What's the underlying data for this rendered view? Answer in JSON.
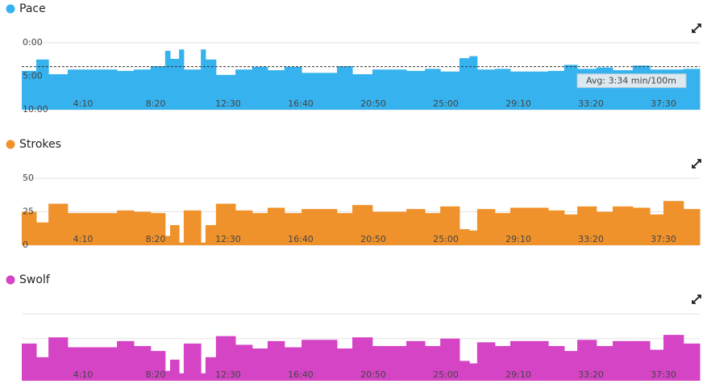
{
  "chart_data": [
    {
      "type": "histogram",
      "title": "Pace",
      "color": "#36b3ee",
      "inverted": true,
      "grid": true,
      "bins": [
        39,
        89,
        131,
        197,
        367,
        425,
        483,
        533,
        550,
        581,
        597,
        656,
        672,
        708,
        775,
        833,
        886,
        944,
        1003,
        1125,
        1178,
        1247,
        1364,
        1428,
        1481,
        1547,
        1581,
        1608,
        1669,
        1722,
        1853,
        1908,
        1953,
        2019,
        2075,
        2144,
        2203,
        2250,
        2319,
        2375
      ],
      "values": [
        4.2,
        2.5,
        4.7,
        4.0,
        4.2,
        4.0,
        3.5,
        1.2,
        2.4,
        1.0,
        4.0,
        1.0,
        2.5,
        4.8,
        4.0,
        3.6,
        4.1,
        3.6,
        4.5,
        3.5,
        4.7,
        4.0,
        4.2,
        3.9,
        4.3,
        2.3,
        2.0,
        4.0,
        3.9,
        4.3,
        4.2,
        3.3,
        3.9,
        3.7,
        4.1,
        3.4,
        4.0,
        4.0,
        3.9
      ],
      "xlim": [
        39,
        2375
      ],
      "xticks": [
        {
          "value": 250,
          "label": "4:10"
        },
        {
          "value": 500,
          "label": "8:20"
        },
        {
          "value": 750,
          "label": "12:30"
        },
        {
          "value": 1000,
          "label": "16:40"
        },
        {
          "value": 1250,
          "label": "20:50"
        },
        {
          "value": 1500,
          "label": "25:00"
        },
        {
          "value": 1750,
          "label": "29:10"
        },
        {
          "value": 2000,
          "label": "33:20"
        },
        {
          "value": 2250,
          "label": "37:30"
        }
      ],
      "ylim": [
        0,
        10
      ],
      "yticks": [
        {
          "value": 0,
          "label": "0:00"
        },
        {
          "value": 5,
          "label": "5:00"
        },
        {
          "value": 10,
          "label": "10:00"
        }
      ],
      "annotation": {
        "text": "Avg: 3:34 min/100m",
        "value": 3.567
      }
    },
    {
      "type": "histogram",
      "title": "Strokes",
      "color": "#f0922b",
      "grid": true,
      "bins": [
        39,
        89,
        131,
        197,
        367,
        425,
        483,
        533,
        550,
        581,
        597,
        656,
        672,
        708,
        775,
        833,
        886,
        944,
        1003,
        1125,
        1178,
        1247,
        1364,
        1428,
        1481,
        1547,
        1581,
        1608,
        1669,
        1722,
        1853,
        1908,
        1953,
        2019,
        2075,
        2144,
        2203,
        2250,
        2319,
        2375
      ],
      "values": [
        25,
        17,
        31,
        24,
        26,
        25,
        24,
        7,
        15,
        2,
        26,
        2,
        15,
        31,
        26,
        24,
        28,
        24,
        27,
        24,
        30,
        25,
        27,
        24,
        29,
        12,
        11,
        27,
        24,
        28,
        26,
        23,
        29,
        25,
        29,
        28,
        23,
        33,
        27
      ],
      "xlim": [
        39,
        2375
      ],
      "xticks": [
        {
          "value": 250,
          "label": "4:10"
        },
        {
          "value": 500,
          "label": "8:20"
        },
        {
          "value": 750,
          "label": "12:30"
        },
        {
          "value": 1000,
          "label": "16:40"
        },
        {
          "value": 1250,
          "label": "20:50"
        },
        {
          "value": 1500,
          "label": "25:00"
        },
        {
          "value": 1750,
          "label": "29:10"
        },
        {
          "value": 2000,
          "label": "33:20"
        },
        {
          "value": 2250,
          "label": "37:30"
        }
      ],
      "ylim": [
        0,
        50
      ],
      "yticks": [
        0,
        25,
        50
      ]
    },
    {
      "type": "histogram",
      "title": "Swolf",
      "color": "#d444c4",
      "grid": true,
      "ytick_labels": false,
      "bins": [
        39,
        89,
        131,
        197,
        367,
        425,
        483,
        533,
        550,
        581,
        597,
        656,
        672,
        708,
        775,
        833,
        886,
        944,
        1003,
        1125,
        1178,
        1247,
        1364,
        1428,
        1481,
        1547,
        1581,
        1608,
        1669,
        1722,
        1853,
        1908,
        1953,
        2019,
        2075,
        2144,
        2203,
        2250,
        2319,
        2375
      ],
      "values": [
        36,
        25,
        41,
        33,
        38,
        34,
        30,
        14,
        23,
        12,
        36,
        12,
        25,
        42,
        35,
        32,
        38,
        33,
        39,
        32,
        41,
        34,
        38,
        34,
        40,
        22,
        20,
        37,
        34,
        38,
        34,
        30,
        39,
        34,
        38,
        38,
        31,
        43,
        36
      ],
      "xlim": [
        39,
        2375
      ],
      "xticks": [
        {
          "value": 250,
          "label": "4:10"
        },
        {
          "value": 500,
          "label": "8:20"
        },
        {
          "value": 750,
          "label": "12:30"
        },
        {
          "value": 1000,
          "label": "16:40"
        },
        {
          "value": 1250,
          "label": "20:50"
        },
        {
          "value": 1500,
          "label": "25:00"
        },
        {
          "value": 1750,
          "label": "29:10"
        },
        {
          "value": 2000,
          "label": "33:20"
        },
        {
          "value": 2250,
          "label": "37:30"
        }
      ],
      "ylim": [
        6,
        60
      ],
      "yticks": [
        40,
        60
      ]
    }
  ]
}
